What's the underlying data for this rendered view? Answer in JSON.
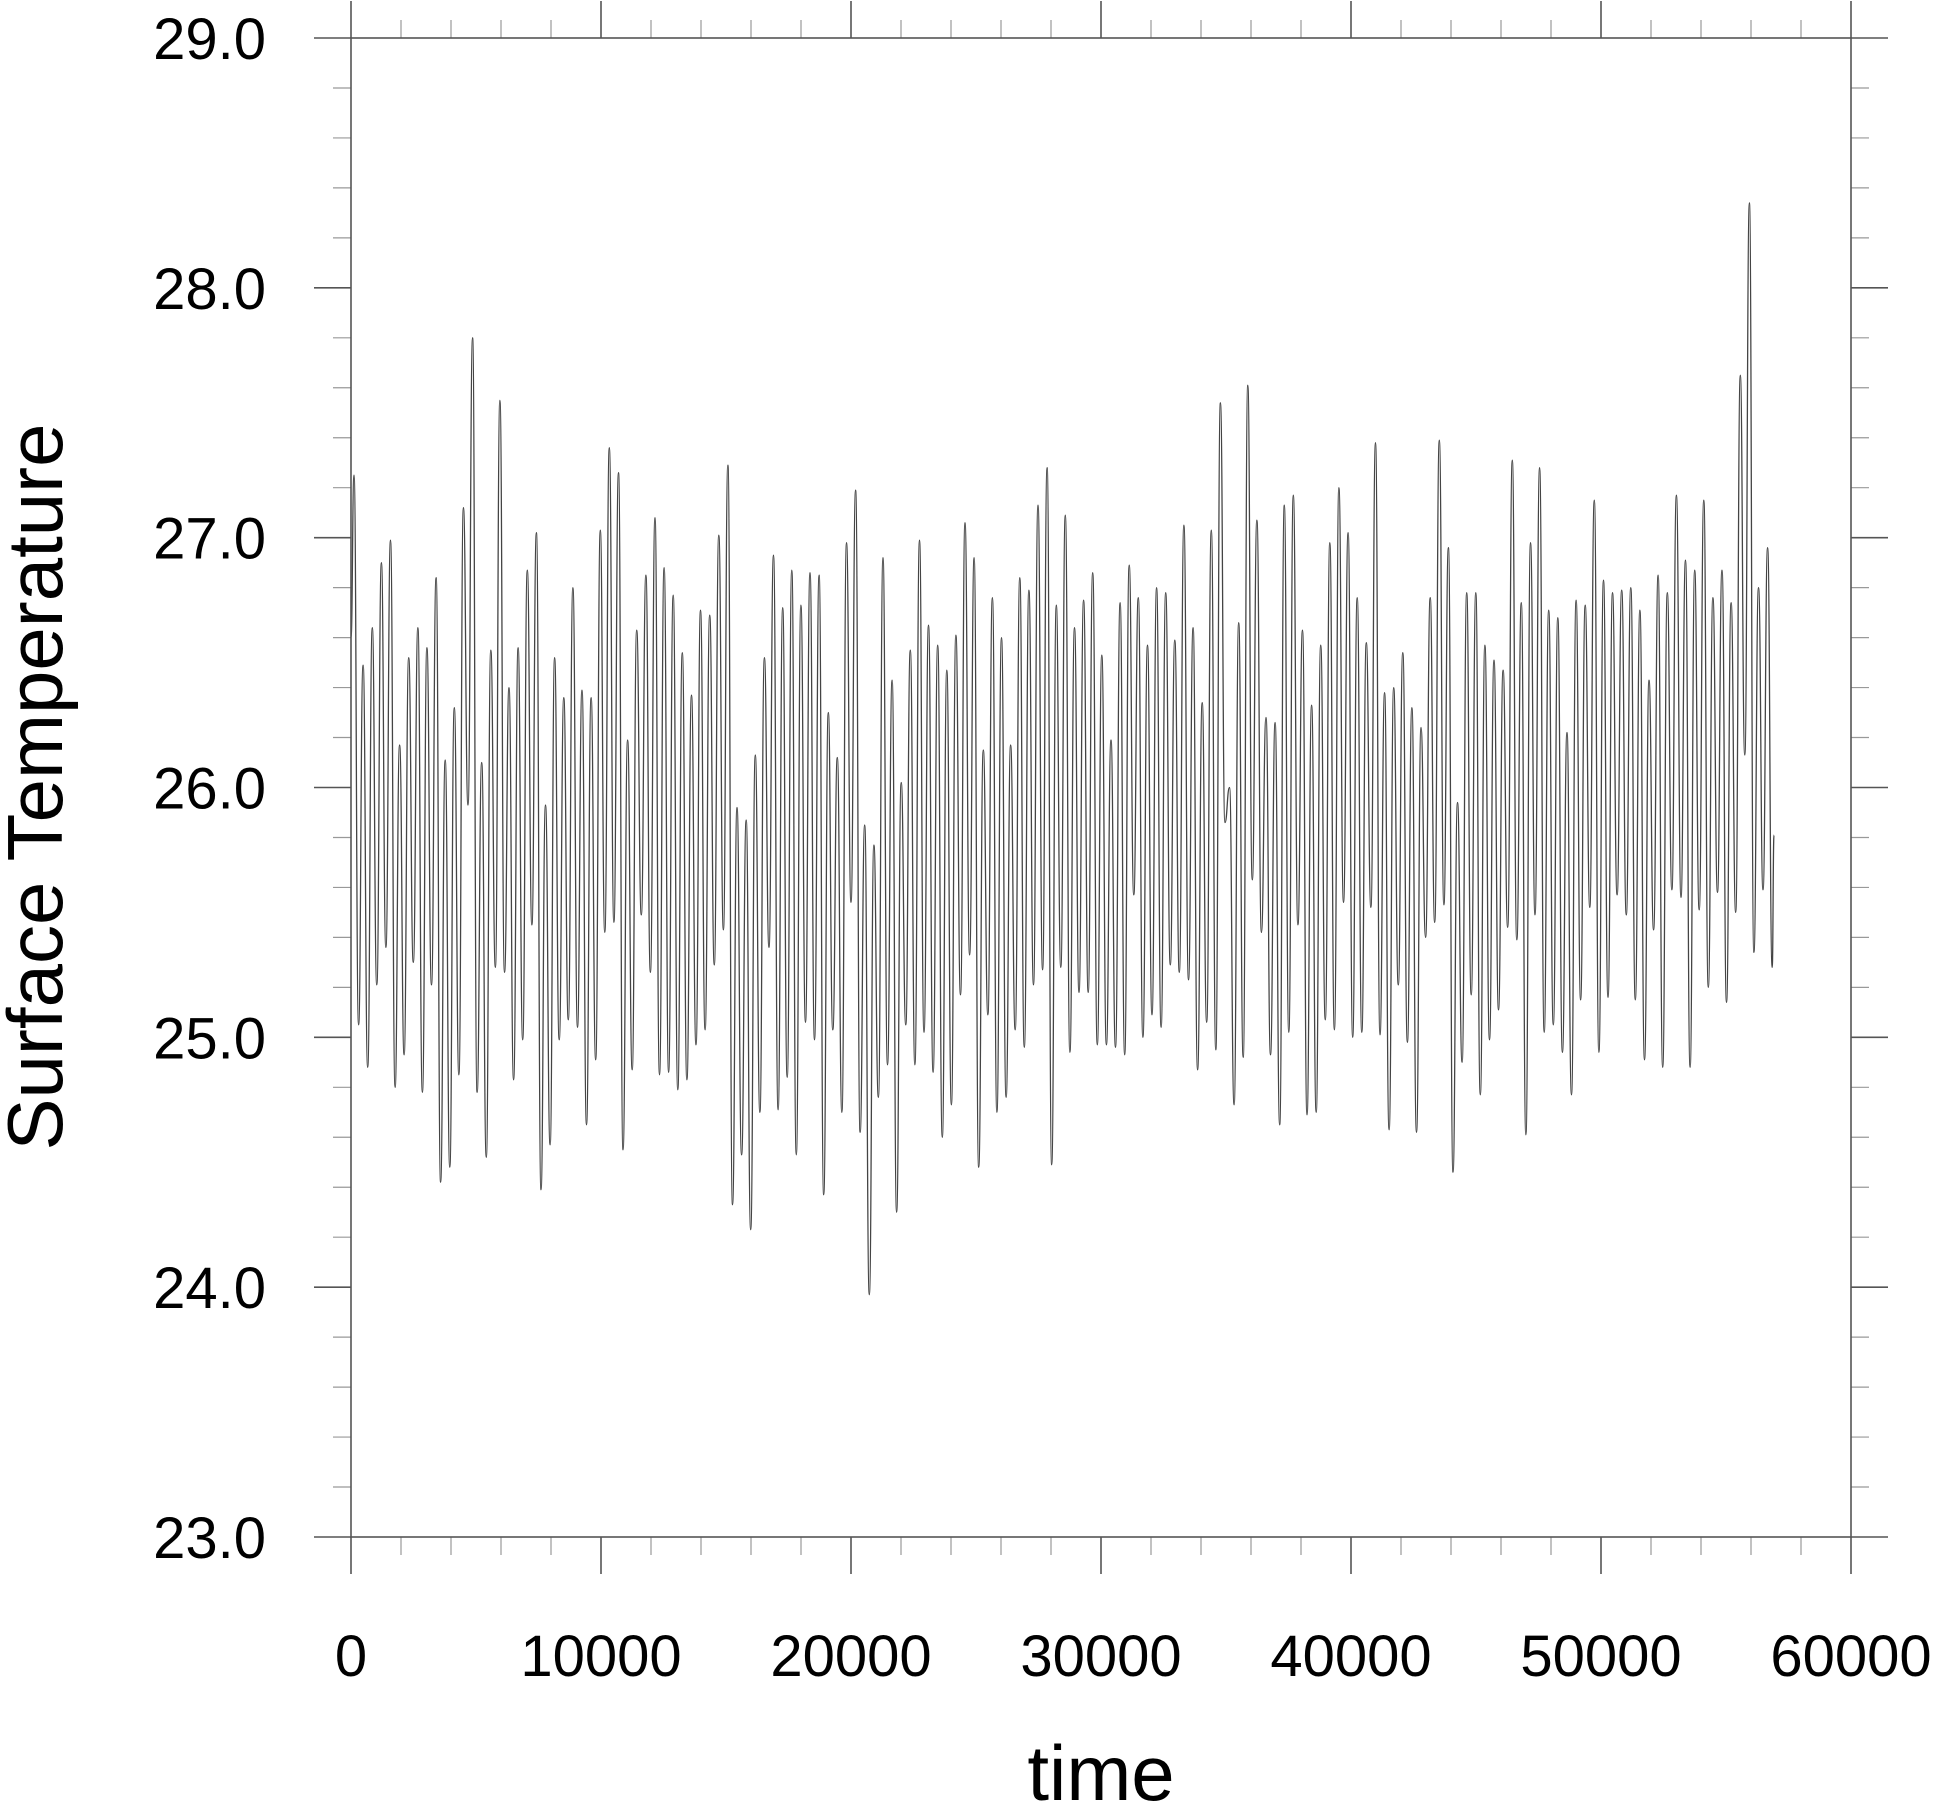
{
  "chart_data": {
    "type": "line",
    "title": "",
    "xlabel": "time",
    "ylabel": "Surface Temperature",
    "xlim": [
      0,
      60000
    ],
    "ylim": [
      23.0,
      29.0
    ],
    "x_ticks": [
      0,
      10000,
      20000,
      30000,
      40000,
      50000,
      60000
    ],
    "x_tick_labels": [
      "0",
      "10000",
      "20000",
      "30000",
      "40000",
      "50000",
      "60000"
    ],
    "x_minor_step": 2000,
    "y_ticks": [
      23.0,
      24.0,
      25.0,
      26.0,
      27.0,
      28.0,
      29.0
    ],
    "y_tick_labels": [
      "23.0",
      "24.0",
      "25.0",
      "26.0",
      "27.0",
      "28.0",
      "29.0"
    ],
    "y_minor_step": 0.2,
    "grid": false,
    "legend": "none",
    "line_color": "#444444",
    "series": [
      {
        "y_start": 26.6,
        "y_end": 25.81,
        "peaks": [
          27.25,
          26.49,
          26.64,
          26.9,
          26.99,
          26.17,
          26.52,
          26.64,
          26.56,
          26.84,
          26.11,
          26.32,
          27.12,
          27.8,
          26.1,
          26.55,
          27.55,
          26.4,
          26.56,
          26.87,
          27.02,
          25.93,
          26.52,
          26.36,
          26.8,
          26.39,
          26.36,
          27.03,
          27.36,
          27.26,
          26.19,
          26.63,
          26.85,
          27.08,
          26.88,
          26.77,
          26.54,
          26.37,
          26.71,
          26.69,
          27.01,
          27.29,
          25.92,
          25.87,
          26.13,
          26.52,
          26.93,
          26.72,
          26.87,
          26.73,
          26.86,
          26.85,
          26.3,
          26.12,
          26.98,
          27.19,
          25.85,
          25.77,
          26.92,
          26.43,
          26.02,
          26.55,
          26.99,
          26.65,
          26.57,
          26.47,
          26.61,
          27.06,
          26.92,
          26.15,
          26.76,
          26.6,
          26.17,
          26.84,
          26.79,
          27.13,
          27.28,
          26.73,
          27.09,
          26.64,
          26.75,
          26.86,
          26.53,
          26.19,
          26.74,
          26.89,
          26.76,
          26.57,
          26.8,
          26.78,
          26.59,
          27.05,
          26.64,
          26.34,
          27.03,
          27.54,
          26.0,
          26.66,
          27.61,
          27.07,
          26.28,
          26.26,
          27.13,
          27.17,
          26.63,
          26.33,
          26.57,
          26.98,
          27.2,
          27.02,
          26.76,
          26.58,
          27.38,
          26.38,
          26.4,
          26.54,
          26.32,
          26.24,
          26.76,
          27.39,
          26.96,
          25.94,
          26.78,
          26.78,
          26.57,
          26.51,
          26.47,
          27.31,
          26.74,
          26.98,
          27.28,
          26.71,
          26.68,
          26.22,
          26.75,
          26.73,
          27.15,
          26.83,
          26.78,
          26.79,
          26.8,
          26.71,
          26.43,
          26.85,
          26.78,
          27.17,
          26.91,
          26.87,
          27.15,
          26.76,
          26.87,
          26.74,
          27.65,
          28.34,
          26.8,
          26.96
        ],
        "troughs": [
          25.05,
          24.88,
          25.21,
          25.36,
          24.8,
          24.93,
          25.3,
          24.78,
          25.21,
          24.42,
          24.48,
          24.85,
          25.93,
          24.78,
          24.52,
          25.28,
          25.26,
          24.83,
          24.99,
          25.45,
          24.39,
          24.57,
          24.99,
          25.07,
          25.04,
          24.65,
          24.91,
          25.42,
          25.46,
          24.55,
          24.87,
          25.49,
          25.26,
          24.85,
          24.86,
          24.79,
          24.83,
          24.97,
          25.03,
          25.29,
          25.43,
          24.33,
          24.53,
          24.23,
          24.7,
          25.36,
          24.71,
          24.84,
          24.53,
          25.06,
          24.99,
          24.37,
          25.03,
          24.7,
          25.54,
          24.62,
          23.97,
          24.76,
          24.89,
          24.3,
          25.05,
          24.89,
          25.02,
          24.86,
          24.6,
          24.73,
          25.17,
          25.33,
          24.48,
          25.09,
          24.7,
          24.76,
          25.03,
          24.96,
          25.21,
          25.27,
          24.49,
          25.28,
          24.94,
          25.18,
          25.18,
          24.97,
          24.97,
          24.96,
          24.93,
          25.57,
          25.0,
          25.09,
          25.04,
          25.29,
          25.26,
          25.23,
          24.87,
          25.06,
          24.95,
          25.86,
          24.73,
          24.92,
          25.63,
          25.42,
          24.93,
          24.65,
          25.02,
          25.45,
          24.69,
          24.7,
          25.07,
          25.03,
          25.54,
          25.0,
          25.02,
          25.52,
          25.01,
          24.63,
          25.21,
          24.98,
          24.62,
          25.4,
          25.46,
          25.53,
          24.46,
          24.9,
          25.17,
          24.77,
          24.99,
          25.11,
          25.44,
          25.39,
          24.61,
          25.49,
          25.02,
          25.05,
          24.94,
          24.77,
          25.15,
          25.52,
          24.94,
          25.16,
          25.57,
          25.49,
          25.15,
          24.91,
          25.43,
          24.88,
          25.59,
          25.56,
          24.88,
          25.51,
          25.2,
          25.58,
          25.14,
          25.5,
          26.13,
          25.34,
          25.59,
          25.28
        ],
        "x": [
          0,
          120,
          302,
          485,
          667,
          850,
          1032,
          1214,
          1397,
          1579,
          1762,
          1944,
          2126,
          2309,
          2491,
          2674,
          2856,
          3038,
          3221,
          3403,
          3586,
          3768,
          3950,
          4133,
          4315,
          4498,
          4680,
          4862,
          5045,
          5227,
          5410,
          5592,
          5774,
          5957,
          6139,
          6322,
          6504,
          6686,
          6869,
          7051,
          7234,
          7416,
          7598,
          7781,
          7963,
          8146,
          8328,
          8510,
          8693,
          8875,
          9058,
          9240,
          9422,
          9605,
          9787,
          9970,
          10152,
          10334,
          10517,
          10699,
          10882,
          11064,
          11246,
          11429,
          11611,
          11794,
          11976,
          12158,
          12341,
          12523,
          12706,
          12888,
          13070,
          13253,
          13435,
          13618,
          13800,
          13982,
          14165,
          14347,
          14530,
          14712,
          14894,
          15077,
          15259,
          15442,
          15624,
          15806,
          15989,
          16171,
          16354,
          16536,
          16718,
          16901,
          17083,
          17266,
          17448,
          17630,
          17813,
          17995,
          18178,
          18360,
          18542,
          18725,
          18907,
          19090,
          19272,
          19454,
          19637,
          19819,
          20002,
          20184,
          20366,
          20549,
          20731,
          20914,
          21096,
          21278,
          21461,
          21643,
          21826,
          22008,
          22190,
          22373,
          22555,
          22738,
          22920,
          23102,
          23285,
          23467,
          23650,
          23832,
          24014,
          24197,
          24379,
          24562,
          24744,
          24926,
          25109,
          25291,
          25474,
          25656,
          25838,
          26021,
          26203,
          26386,
          26568,
          26750,
          26933,
          27115,
          27298,
          27480,
          27662,
          27845,
          28027,
          28210,
          28392,
          28574,
          28757,
          28939,
          29122,
          29304,
          29486,
          29669,
          29851,
          30034,
          30216,
          30398,
          30581,
          30763,
          30946,
          31128,
          31310,
          31493,
          31675,
          31858,
          32040,
          32222,
          32405,
          32587,
          32770,
          32952,
          33134,
          33317,
          33499,
          33682,
          33864,
          34046,
          34229,
          34411,
          34594,
          34776,
          34958,
          35141,
          35323,
          35506,
          35688,
          35870,
          36053,
          36235,
          36418,
          36600,
          36782,
          36965,
          37147,
          37330,
          37512,
          37694,
          37877,
          38059,
          38242,
          38424,
          38606,
          38789,
          38971,
          39154,
          39336,
          39518,
          39701,
          39883,
          40066,
          40248,
          40430,
          40613,
          40795,
          40978,
          41160,
          41342,
          41525,
          41707,
          41890,
          42072,
          42254,
          42437,
          42619,
          42802,
          42984,
          43166,
          43349,
          43531,
          43714,
          43896,
          44078,
          44261,
          44443,
          44626,
          44808,
          44990,
          45173,
          45355,
          45538,
          45720,
          45902,
          46085,
          46267,
          46450,
          46632,
          46814,
          46997,
          47179,
          47362,
          47544,
          47726,
          47909,
          48091,
          48274,
          48456,
          48638,
          48821,
          49003,
          49186,
          49368,
          49550,
          49733,
          49915,
          50098,
          50280,
          50462,
          50645,
          50827,
          51010,
          51192,
          51374,
          51557,
          51739,
          51922,
          52104,
          52286,
          52469,
          52651,
          52834,
          53016,
          53198,
          53381,
          53563,
          53746,
          53928,
          54110,
          54293,
          54475,
          54658,
          54840,
          55022,
          55205,
          55387,
          55570,
          55752,
          55934,
          56117,
          56299,
          56482,
          56664,
          56846,
          56920
        ]
      }
    ]
  }
}
